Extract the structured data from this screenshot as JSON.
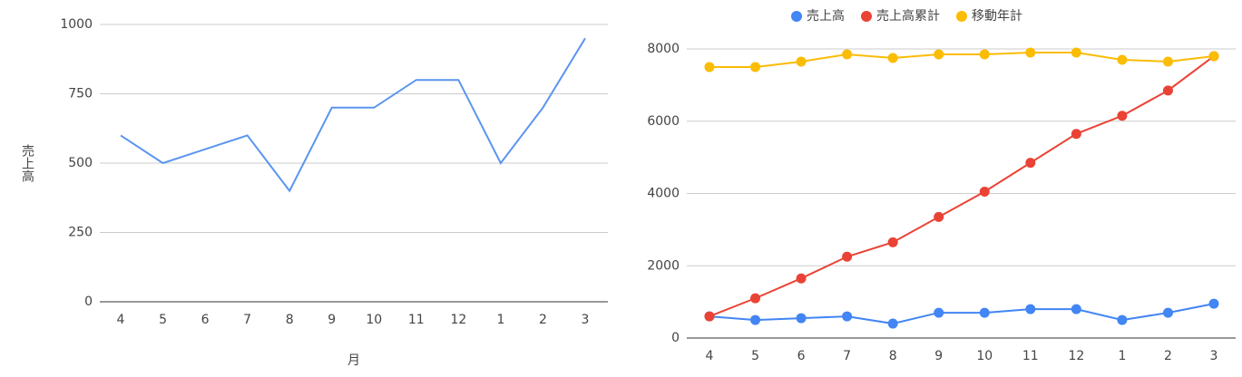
{
  "chart_data": [
    {
      "type": "line",
      "y_label": "売上高",
      "x_label": "月",
      "categories": [
        "4",
        "5",
        "6",
        "7",
        "8",
        "9",
        "10",
        "11",
        "12",
        "1",
        "2",
        "3"
      ],
      "series": [
        {
          "name": "売上高",
          "color": "#5b95f0",
          "values": [
            600,
            500,
            550,
            600,
            400,
            700,
            700,
            800,
            800,
            500,
            700,
            950
          ]
        }
      ],
      "ylim": [
        0,
        1000
      ],
      "yticks": [
        0,
        250,
        500,
        750,
        1000
      ],
      "grid": true,
      "markers": false
    },
    {
      "type": "line",
      "legend": "top",
      "categories": [
        "4",
        "5",
        "6",
        "7",
        "8",
        "9",
        "10",
        "11",
        "12",
        "1",
        "2",
        "3"
      ],
      "series": [
        {
          "name": "売上高",
          "color": "#4285f4",
          "values": [
            600,
            500,
            550,
            600,
            400,
            700,
            700,
            800,
            800,
            500,
            700,
            950
          ]
        },
        {
          "name": "売上高累計",
          "color": "#ea4335",
          "values": [
            600,
            1100,
            1650,
            2250,
            2650,
            3350,
            4050,
            4850,
            5650,
            6150,
            6850,
            7800
          ]
        },
        {
          "name": "移動年計",
          "color": "#fbbc04",
          "values": [
            7500,
            7500,
            7650,
            7850,
            7750,
            7850,
            7850,
            7900,
            7900,
            7700,
            7650,
            7800
          ]
        }
      ],
      "ylim": [
        0,
        8000
      ],
      "yticks": [
        0,
        2000,
        4000,
        6000,
        8000
      ],
      "grid": true,
      "markers": true
    }
  ]
}
